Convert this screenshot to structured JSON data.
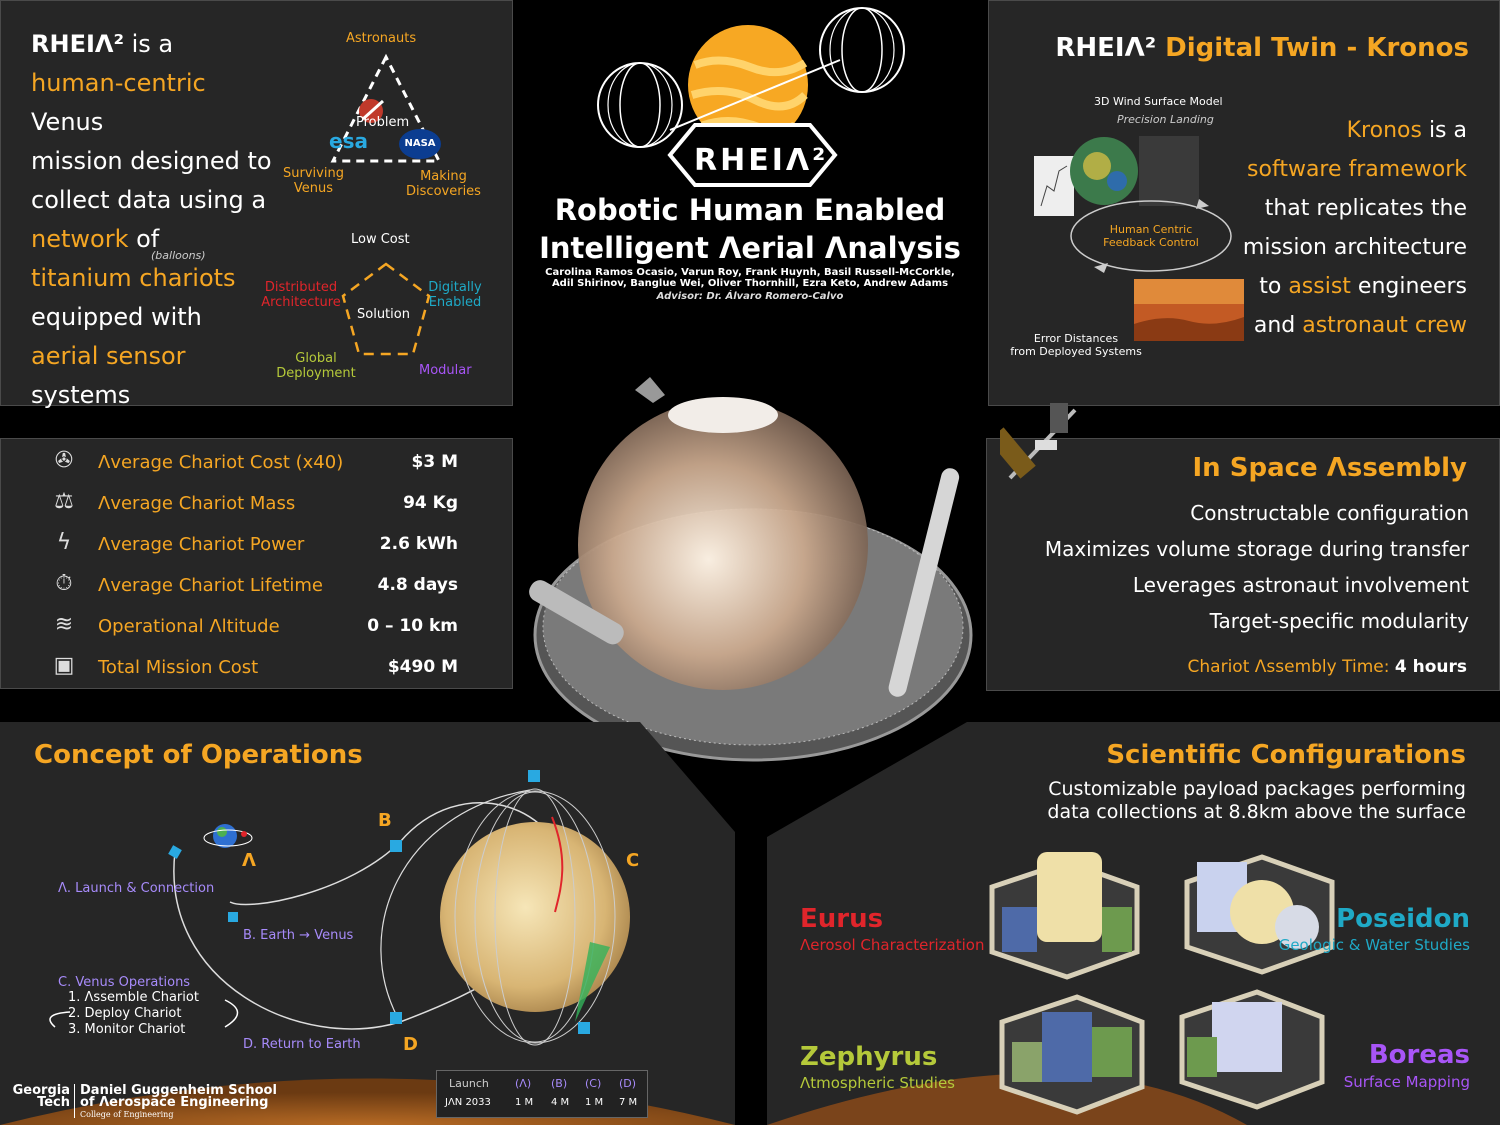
{
  "intro": {
    "brand": "RHEIΛ²",
    "line1_tail": " is a",
    "hl_human": "human-centric",
    "line2_tail": " Venus",
    "line3": "mission designed to",
    "line4": "collect data using a",
    "hl_network": "network",
    "line5_tail": " of",
    "hl_chariots": "titanium chariots",
    "balloons": "(balloons)",
    "line7": "equipped with",
    "hl_sensor": "aerial sensor",
    "line9": "systems"
  },
  "triangle": {
    "top": "Astronauts",
    "center": "Problem",
    "left": "Surviving\nVenus",
    "right": "Making\nDiscoveries",
    "esa": "esa",
    "nasa": "NASA"
  },
  "pentagon": {
    "top": "Low Cost",
    "center": "Solution",
    "left": "Distributed\nArchitecture",
    "right": "Digitally\nEnabled",
    "bottom_left": "Global\nDeployment",
    "bottom_right": "Modular"
  },
  "center": {
    "logo": "RHEIΛ²",
    "title_line1": "Robotic Human Enabled",
    "title_line2": "Intelligent Λerial Λnalysis",
    "authors_line1": "Carolina Ramos Ocasio, Varun Roy, Frank Huynh, Basil Russell-McCorkle,",
    "authors_line2": "Adil Shirinov, Banglue Wei, Oliver Thornhill, Ezra Keto, Andrew Adams",
    "advisor": "Advisor: Dr. Álvaro Romero-Calvo"
  },
  "kronos": {
    "title_brand": "RHEIΛ²",
    "title_rest": " Digital Twin - Kronos",
    "wind_label": "3D Wind Surface Model",
    "precision_label": "Precision Landing",
    "feedback_label": "Human Centric\nFeedback Control",
    "error_label": "Error Distances\nfrom Deployed Systems",
    "t1a": "Kronos",
    "t1b": " is a",
    "t2": "software framework",
    "t3": "that replicates the",
    "t4": "mission architecture",
    "t5a": "to ",
    "t5b": "assist",
    "t5c": " engineers",
    "t6a": "and ",
    "t6b": "astronaut crew"
  },
  "stats": {
    "rows": [
      {
        "icon": "satellite-icon",
        "label": "Λverage Chariot Cost (x40)",
        "value": "$3 M"
      },
      {
        "icon": "scale-icon",
        "label": "Λverage Chariot Mass",
        "value": "94 Kg"
      },
      {
        "icon": "lightning-icon",
        "label": "Λverage Chariot Power",
        "value": "2.6 kWh"
      },
      {
        "icon": "stopwatch-icon",
        "label": "Λverage Chariot Lifetime",
        "value": "4.8 days"
      },
      {
        "icon": "wind-icon",
        "label": "Operational Λltitude",
        "value": "0 – 10 km"
      },
      {
        "icon": "money-icon",
        "label": "Total Mission Cost",
        "value": "$490 M"
      }
    ]
  },
  "assembly": {
    "title": "In Space Λssembly",
    "items": [
      "Constructable configuration",
      "Maximizes volume storage during transfer",
      "Leverages astronaut involvement",
      "Target-specific modularity"
    ],
    "time_label": "Chariot Λssembly Time: ",
    "time_value": "4 hours"
  },
  "conops": {
    "title": "Concept of Operations",
    "a_launch": "Λ. Launch & Connection",
    "b_transfer": "B. Earth → Venus",
    "c_title": "C. Venus Operations",
    "c1": "1.  Λssemble Chariot",
    "c2": "2.  Deploy Chariot",
    "c3": "3. Monitor Chariot",
    "d_return": "D. Return to Earth",
    "letter_a": "Λ",
    "letter_b": "B",
    "letter_c": "C",
    "letter_d": "D",
    "timeline_launch": "Launch",
    "timeline_date": "JΛN 2033",
    "timeline_cols": [
      {
        "key": "(Λ)",
        "val": "1 M"
      },
      {
        "key": "(B)",
        "val": "4 M"
      },
      {
        "key": "(C)",
        "val": "1 M"
      },
      {
        "key": "(D)",
        "val": "7 M"
      }
    ],
    "gt_line1": "Georgia",
    "gt_line2": "Tech",
    "school_line1": "Daniel Guggenheim School",
    "school_line2": "of Λerospace Engineering",
    "school_line3": "College of Engineering"
  },
  "science": {
    "title": "Scientific Configurations",
    "sub": "Customizable payload packages performing data collections at 8.8km above the surface",
    "eurus_name": "Eurus",
    "eurus_sub": "Λerosol Characterization",
    "poseidon_name": "Poseidon",
    "poseidon_sub": "Geologic & Water Studies",
    "zephyrus_name": "Zephyrus",
    "zephyrus_sub": "Λtmospheric Studies",
    "boreas_name": "Boreas",
    "boreas_sub": "Surface Mapping"
  },
  "colors": {
    "accent": "#f5a623",
    "panel": "#262626",
    "eurus": "#e0252b",
    "poseidon": "#1fa9c6",
    "zephyrus": "#b5c93a",
    "boreas": "#a855f7",
    "conops_label": "#a78bfa"
  }
}
